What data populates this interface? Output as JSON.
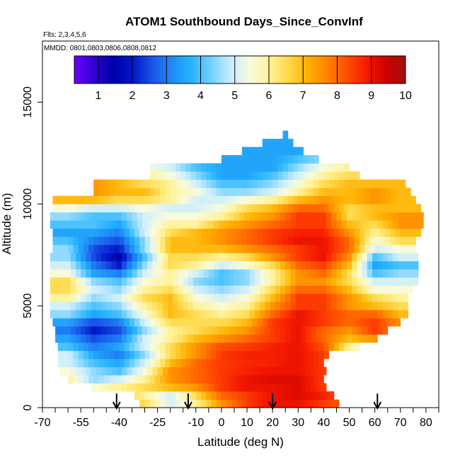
{
  "chart_data": {
    "type": "heatmap",
    "title": "ATOM1 Southbound Days_Since_ConvInf",
    "flights_note": "Flts: 2,3,4,5,6",
    "dates_note": "MMDD: 0801,0803,0806,0808,0812",
    "xlabel": "Latitude (deg N)",
    "ylabel": "Altitude (m)",
    "xlim": [
      -70,
      85
    ],
    "ylim": [
      0,
      18000
    ],
    "x_ticks": [
      -70,
      -55,
      -40,
      -25,
      -10,
      0,
      10,
      20,
      30,
      40,
      50,
      60,
      70,
      80
    ],
    "x_minor_ticks": [
      -65,
      -60,
      -50,
      -45,
      -35,
      -30,
      -20,
      -15,
      -5,
      5,
      15,
      25,
      35,
      45,
      55,
      65,
      75,
      85
    ],
    "y_ticks": [
      0,
      5000,
      10000,
      15000
    ],
    "colorbar": {
      "min": 0.3,
      "max": 10,
      "ticks": [
        1,
        2,
        3,
        4,
        5,
        6,
        7,
        8,
        9,
        10
      ],
      "colors": [
        "#6a00ff",
        "#3000d0",
        "#0000a8",
        "#0018c8",
        "#1a55e8",
        "#1f8bf5",
        "#26b4ff",
        "#73d0ff",
        "#c8ecff",
        "#f7fbe0",
        "#fff39a",
        "#ffd94a",
        "#ffb000",
        "#ff8200",
        "#ff4e00",
        "#f51a00",
        "#cd0000",
        "#a01010"
      ]
    },
    "arrows_latitude": [
      -41,
      -13,
      20,
      61
    ],
    "altitude_rows": [
      200,
      600,
      1000,
      1400,
      1800,
      2200,
      2600,
      3000,
      3400,
      3800,
      4200,
      4600,
      5000,
      5400,
      5800,
      6200,
      6600,
      7000,
      7400,
      7800,
      8200,
      8600,
      9000,
      9400,
      9800,
      10200,
      10600,
      11000,
      11400,
      11800,
      12200,
      12600,
      13000,
      13400
    ],
    "row_lat_range": [
      [
        -32,
        45
      ],
      [
        -34,
        44
      ],
      [
        -51,
        40
      ],
      [
        -60,
        40
      ],
      [
        -63,
        40
      ],
      [
        -64,
        40
      ],
      [
        -64,
        42
      ],
      [
        -64,
        54
      ],
      [
        -65,
        60
      ],
      [
        -65,
        64
      ],
      [
        -66,
        70
      ],
      [
        -67,
        72
      ],
      [
        -67,
        72
      ],
      [
        -67,
        73
      ],
      [
        -67,
        75
      ],
      [
        -67,
        76
      ],
      [
        -67,
        76
      ],
      [
        -67,
        76
      ],
      [
        -67,
        77
      ],
      [
        -66,
        76
      ],
      [
        -66,
        76
      ],
      [
        -66,
        77
      ],
      [
        -67,
        78
      ],
      [
        -67,
        78
      ],
      [
        -66,
        77
      ],
      [
        -66,
        76
      ],
      [
        -50,
        74
      ],
      [
        -50,
        72
      ],
      [
        -28,
        53
      ],
      [
        -28,
        50
      ],
      [
        0,
        38
      ],
      [
        8,
        32
      ],
      [
        16,
        27
      ],
      [
        24,
        26
      ]
    ],
    "control_latitudes": [
      -70,
      -60,
      -50,
      -40,
      -30,
      -20,
      -10,
      0,
      10,
      20,
      30,
      40,
      50,
      60,
      70,
      80
    ],
    "value_grid": [
      [
        8,
        8,
        8,
        7,
        6.5,
        5,
        6,
        7.5,
        8.5,
        9,
        9,
        8.5,
        8,
        8,
        8,
        8
      ],
      [
        8,
        8,
        7.5,
        7,
        6,
        5,
        6.5,
        8,
        8.5,
        9,
        9.2,
        8.8,
        8,
        8,
        8,
        8
      ],
      [
        7,
        7,
        5.5,
        6,
        6.5,
        7,
        7.5,
        8.5,
        9,
        9,
        9.2,
        8.5,
        8,
        8,
        8,
        8
      ],
      [
        6,
        6,
        4.5,
        5,
        6,
        7.5,
        8,
        8.5,
        9,
        9.2,
        9.2,
        8.5,
        7,
        3,
        5,
        5
      ],
      [
        5.5,
        5.5,
        4.5,
        4,
        5.5,
        7.5,
        8,
        8.5,
        8.8,
        9,
        9,
        8.5,
        7,
        1.5,
        5,
        5
      ],
      [
        5,
        5,
        4,
        3.5,
        5,
        7,
        8,
        8.5,
        8.7,
        8.8,
        9,
        8.5,
        6,
        3,
        5,
        5
      ],
      [
        5,
        5,
        3.5,
        3,
        4.5,
        6.5,
        7.5,
        8.5,
        8.8,
        8.8,
        9,
        8.5,
        6.5,
        4,
        5,
        5
      ],
      [
        4,
        4,
        3,
        3.5,
        5,
        6.5,
        7.5,
        8.3,
        8.5,
        8.8,
        9,
        8.3,
        6,
        5,
        5,
        5
      ],
      [
        3.5,
        3.5,
        2.5,
        3,
        5,
        6,
        7,
        7.5,
        8,
        8.5,
        9,
        8,
        7,
        7.5,
        7,
        7
      ],
      [
        3,
        3,
        2,
        2.5,
        4.5,
        6,
        6.5,
        7,
        7.5,
        8.5,
        9,
        8,
        7.5,
        8.5,
        7.5,
        7.5
      ],
      [
        3.5,
        3.5,
        2.5,
        3,
        5,
        6.5,
        6.5,
        6.5,
        7,
        8.5,
        9,
        8.5,
        8,
        8.5,
        7.5,
        7.5
      ],
      [
        4.5,
        4.5,
        3.5,
        4,
        5.5,
        7,
        6.5,
        6,
        6.5,
        8,
        9,
        8.5,
        8,
        8,
        7,
        7
      ],
      [
        5,
        5,
        4,
        4.5,
        6,
        7,
        6,
        5.5,
        6,
        7.5,
        8.5,
        8.5,
        7.5,
        7,
        6.5,
        6.5
      ],
      [
        6,
        6,
        4.5,
        5,
        6.5,
        7,
        5.5,
        5,
        5.5,
        7,
        8.5,
        8.5,
        7.5,
        6.5,
        6,
        6
      ],
      [
        6.5,
        6.5,
        5,
        4.5,
        6,
        6.5,
        5,
        4.5,
        5,
        6.5,
        8,
        8,
        7,
        5.5,
        5.5,
        5.5
      ],
      [
        6.5,
        6.5,
        4.5,
        4,
        5.5,
        6,
        4.5,
        4,
        4.5,
        6,
        7.5,
        7.5,
        6.5,
        5,
        5,
        5
      ],
      [
        5.5,
        5.5,
        3.5,
        3,
        5,
        6,
        5,
        4,
        4.5,
        6,
        7.5,
        8,
        6.5,
        4,
        4.5,
        4.5
      ],
      [
        5,
        5,
        3,
        2,
        4.5,
        6.5,
        6,
        5,
        5.5,
        6.5,
        8,
        8.5,
        7,
        3.5,
        4,
        4
      ],
      [
        4.5,
        4.5,
        2.5,
        1.5,
        4,
        6.5,
        6.5,
        6,
        6.5,
        7.5,
        8.5,
        9,
        7.5,
        4,
        5,
        5
      ],
      [
        4.5,
        4.5,
        2.5,
        2,
        4.5,
        7,
        7,
        7,
        7.5,
        8,
        8.5,
        9,
        8,
        5,
        5.5,
        5.5
      ],
      [
        4,
        4,
        3,
        2.5,
        4.5,
        7,
        7,
        7.5,
        8,
        8.5,
        9,
        9,
        8,
        5.5,
        6.5,
        6.5
      ],
      [
        3.5,
        3.5,
        3.5,
        3,
        5,
        6.5,
        7,
        7.5,
        8,
        8.5,
        8.8,
        8.8,
        7.5,
        6,
        7,
        7
      ],
      [
        4,
        4,
        4,
        3.5,
        5,
        6,
        6,
        7,
        7.5,
        8,
        8.5,
        8.5,
        7,
        6.5,
        7.5,
        7.5
      ],
      [
        4.5,
        4.5,
        4,
        4,
        5,
        5.5,
        5.5,
        6,
        7,
        7.5,
        8.5,
        8.5,
        6.5,
        7,
        7.5,
        7.5
      ],
      [
        5.5,
        5.5,
        5,
        5,
        5.5,
        5,
        5,
        5.5,
        6.5,
        7,
        8,
        8,
        6.5,
        7,
        7,
        7
      ],
      [
        7,
        7,
        7,
        6.5,
        6.5,
        6,
        5,
        5,
        5.5,
        6,
        7,
        7.5,
        7,
        7.5,
        7,
        7
      ],
      [
        8,
        8,
        7.5,
        7,
        7,
        6,
        5.5,
        4.5,
        4.5,
        5,
        6,
        7,
        7,
        7.5,
        7,
        7
      ],
      [
        7.5,
        7.5,
        7.5,
        7,
        6.5,
        6,
        5,
        4,
        4,
        4.5,
        5.5,
        6.5,
        7,
        7,
        7,
        7
      ],
      [
        6,
        6,
        6,
        6,
        6,
        5.5,
        4.5,
        3.5,
        3.5,
        4,
        5,
        6,
        6.5,
        6.5,
        6.5,
        6.5
      ],
      [
        5.5,
        5.5,
        5.5,
        5.5,
        5.5,
        5,
        4,
        3.5,
        3.5,
        3.5,
        4.5,
        5.5,
        6,
        6,
        6,
        6
      ],
      [
        4,
        4,
        4,
        4,
        4,
        4,
        3.5,
        3.5,
        3.5,
        3.5,
        4,
        4.5,
        5,
        5,
        5,
        5
      ],
      [
        3.5,
        3.5,
        3.5,
        3.5,
        3.5,
        3.5,
        3.5,
        3.5,
        3.5,
        3.5,
        3.5,
        4,
        4,
        4,
        4,
        4
      ],
      [
        3.5,
        3.5,
        3.5,
        3.5,
        3.5,
        3.5,
        3.5,
        3.5,
        3.5,
        3.5,
        3.5,
        3.5,
        3.5,
        3.5,
        3.5,
        3.5
      ],
      [
        3.5,
        3.5,
        3.5,
        3.5,
        3.5,
        3.5,
        3.5,
        3.5,
        3.5,
        3.5,
        3.5,
        3.5,
        3.5,
        3.5,
        3.5,
        3.5
      ]
    ]
  }
}
